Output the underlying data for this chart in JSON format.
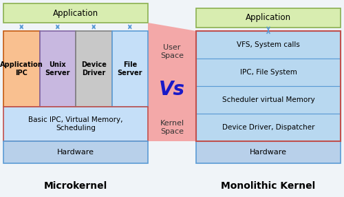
{
  "bg_color": "#f0f4f8",
  "title_left": "Microkernel",
  "title_right": "Monolithic Kernel",
  "vs_text": "Vs",
  "user_space": "User\nSpace",
  "kernel_space": "Kernel\nSpace",
  "left": {
    "app_box": {
      "label": "Application",
      "color": "#d8edb0",
      "border": "#8ab050"
    },
    "kernel_box": {
      "label": "Basic IPC, Virtual Memory,\nScheduling",
      "color": "#c5dff8",
      "border": "#c0504d"
    },
    "hw_box": {
      "label": "Hardware",
      "color": "#b8d0ea",
      "border": "#5b9bd5"
    },
    "service_boxes": [
      {
        "label": "Application\nIPC",
        "color": "#f9c090",
        "border": "#c55a11"
      },
      {
        "label": "Unix\nServer",
        "color": "#c8b8e0",
        "border": "#8064a2"
      },
      {
        "label": "Device\nDriver",
        "color": "#c8c8c8",
        "border": "#808080"
      },
      {
        "label": "File\nServer",
        "color": "#c5dff8",
        "border": "#5b9bd5"
      }
    ]
  },
  "right": {
    "app_box": {
      "label": "Application",
      "color": "#d8edb0",
      "border": "#8ab050"
    },
    "hw_box": {
      "label": "Hardware",
      "color": "#b8d0ea",
      "border": "#5b9bd5"
    },
    "kernel_layers": [
      {
        "label": "VFS, System calls",
        "color": "#b8d8f0",
        "border": "#5b9bd5"
      },
      {
        "label": "IPC, File System",
        "color": "#b8d8f0",
        "border": "#5b9bd5"
      },
      {
        "label": "Scheduler virtual Memory",
        "color": "#b8d8f0",
        "border": "#5b9bd5"
      },
      {
        "label": "Device Driver, Dispatcher",
        "color": "#b8d8f0",
        "border": "#5b9bd5"
      }
    ]
  },
  "arrow_color": "#5b9bd5",
  "figw": 5.0,
  "figh": 2.86,
  "dpi": 100
}
